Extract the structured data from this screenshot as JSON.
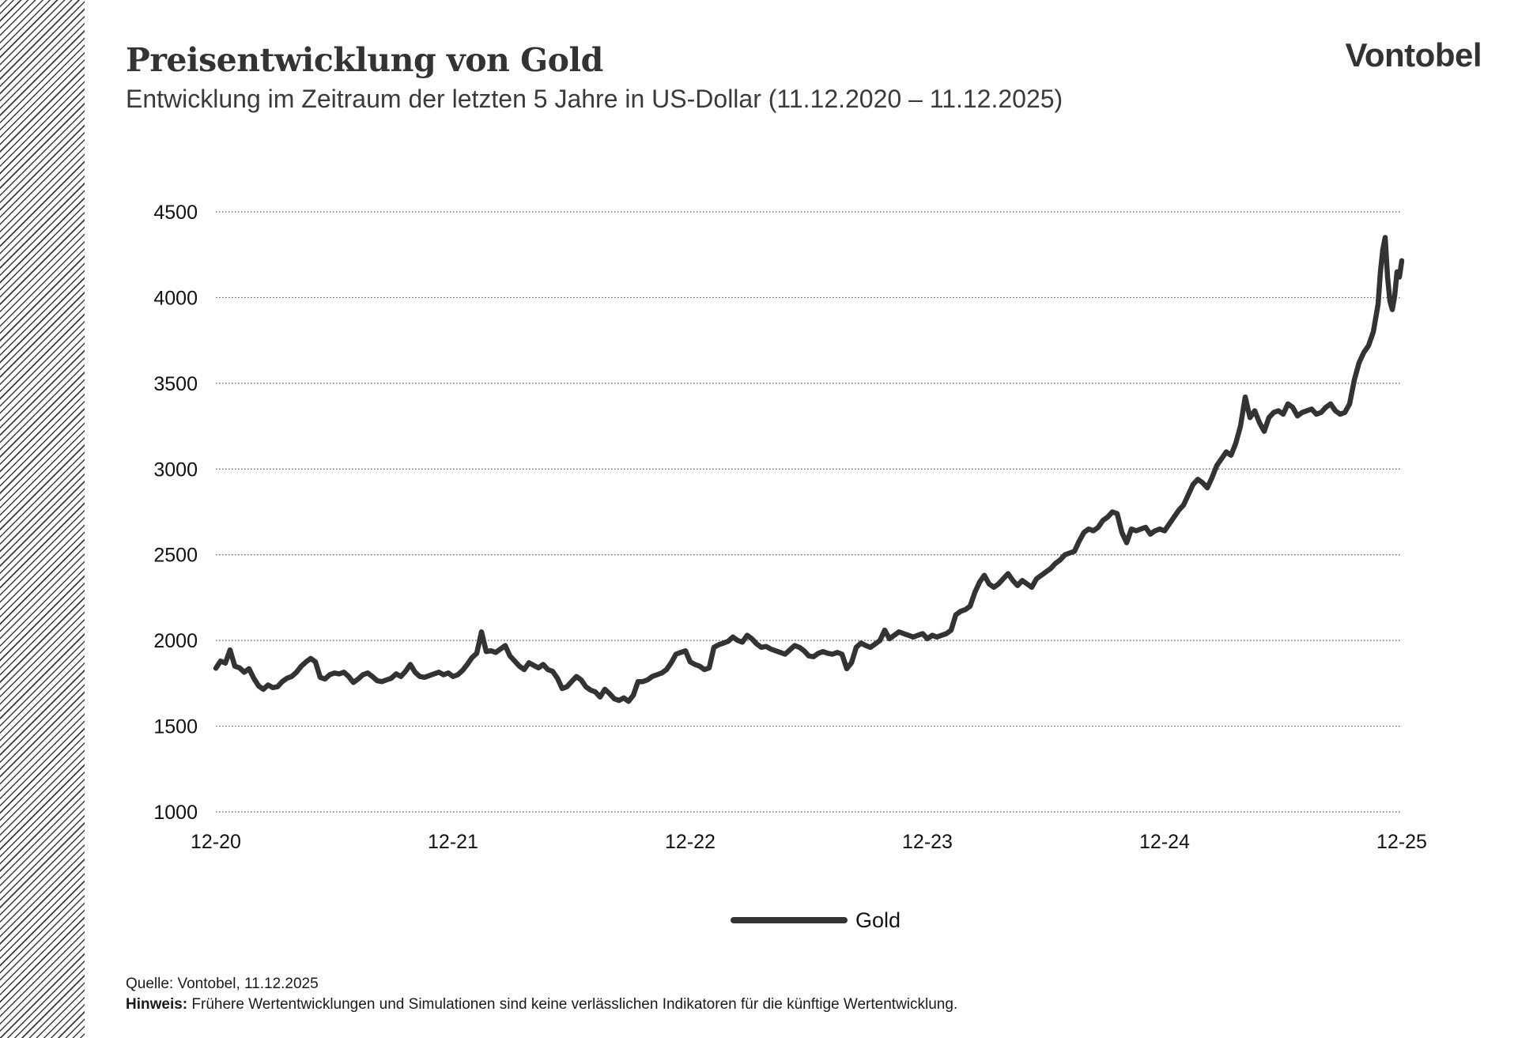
{
  "header": {
    "title": "Preisentwicklung von Gold",
    "subtitle": "Entwicklung im Zeitraum der letzten 5 Jahre in US-Dollar (11.12.2020 – 11.12.2025)",
    "logo": "Vontobel"
  },
  "footer": {
    "source": "Quelle: Vontobel, 11.12.2025",
    "note_label": "Hinweis:",
    "note_text": "Frühere Wertentwicklungen und Simulationen sind keine verlässlichen Indikatoren für die künftige Wertentwicklung."
  },
  "colors": {
    "line": "#333333",
    "grid": "#555555"
  },
  "chart_data": {
    "type": "line",
    "ylim": [
      1000,
      4500
    ],
    "yticks": [
      1000,
      1500,
      2000,
      2500,
      3000,
      3500,
      4000,
      4500
    ],
    "xlim": [
      2020.0,
      2025.0
    ],
    "xticks": [
      {
        "x": 2020.0,
        "label": "12-20"
      },
      {
        "x": 2021.0,
        "label": "12-21"
      },
      {
        "x": 2022.0,
        "label": "12-22"
      },
      {
        "x": 2023.0,
        "label": "12-23"
      },
      {
        "x": 2024.0,
        "label": "12-24"
      },
      {
        "x": 2025.0,
        "label": "12-25"
      }
    ],
    "grid": "horizontal dotted",
    "legend_position": "bottom",
    "series": [
      {
        "name": "Gold",
        "color": "#333333",
        "points": [
          [
            2020.0,
            1838
          ],
          [
            2020.02,
            1880
          ],
          [
            2020.04,
            1868
          ],
          [
            2020.06,
            1945
          ],
          [
            2020.08,
            1850
          ],
          [
            2020.1,
            1840
          ],
          [
            2020.12,
            1815
          ],
          [
            2020.14,
            1835
          ],
          [
            2020.16,
            1780
          ],
          [
            2020.18,
            1735
          ],
          [
            2020.2,
            1715
          ],
          [
            2020.22,
            1740
          ],
          [
            2020.24,
            1725
          ],
          [
            2020.26,
            1730
          ],
          [
            2020.28,
            1760
          ],
          [
            2020.3,
            1780
          ],
          [
            2020.32,
            1790
          ],
          [
            2020.34,
            1815
          ],
          [
            2020.36,
            1850
          ],
          [
            2020.38,
            1875
          ],
          [
            2020.4,
            1895
          ],
          [
            2020.42,
            1875
          ],
          [
            2020.44,
            1785
          ],
          [
            2020.46,
            1775
          ],
          [
            2020.48,
            1800
          ],
          [
            2020.5,
            1810
          ],
          [
            2020.52,
            1805
          ],
          [
            2020.54,
            1815
          ],
          [
            2020.56,
            1790
          ],
          [
            2020.58,
            1755
          ],
          [
            2020.6,
            1775
          ],
          [
            2020.62,
            1800
          ],
          [
            2020.64,
            1810
          ],
          [
            2020.66,
            1790
          ],
          [
            2020.68,
            1765
          ],
          [
            2020.7,
            1760
          ],
          [
            2020.72,
            1770
          ],
          [
            2020.74,
            1780
          ],
          [
            2020.76,
            1805
          ],
          [
            2020.78,
            1790
          ],
          [
            2020.8,
            1820
          ],
          [
            2020.82,
            1860
          ],
          [
            2020.84,
            1815
          ],
          [
            2020.86,
            1790
          ],
          [
            2020.88,
            1785
          ],
          [
            2020.9,
            1795
          ],
          [
            2020.92,
            1805
          ],
          [
            2020.94,
            1815
          ],
          [
            2020.96,
            1800
          ],
          [
            2020.98,
            1810
          ],
          [
            2021.0,
            1790
          ],
          [
            2021.02,
            1800
          ],
          [
            2021.04,
            1825
          ],
          [
            2021.06,
            1860
          ],
          [
            2021.08,
            1900
          ],
          [
            2021.1,
            1925
          ],
          [
            2021.12,
            2050
          ],
          [
            2021.14,
            1935
          ],
          [
            2021.16,
            1940
          ],
          [
            2021.18,
            1930
          ],
          [
            2021.2,
            1950
          ],
          [
            2021.22,
            1970
          ],
          [
            2021.24,
            1910
          ],
          [
            2021.26,
            1880
          ],
          [
            2021.28,
            1850
          ],
          [
            2021.3,
            1830
          ],
          [
            2021.32,
            1870
          ],
          [
            2021.34,
            1855
          ],
          [
            2021.36,
            1840
          ],
          [
            2021.38,
            1860
          ],
          [
            2021.4,
            1830
          ],
          [
            2021.42,
            1820
          ],
          [
            2021.44,
            1780
          ],
          [
            2021.46,
            1720
          ],
          [
            2021.48,
            1730
          ],
          [
            2021.5,
            1760
          ],
          [
            2021.52,
            1790
          ],
          [
            2021.54,
            1770
          ],
          [
            2021.56,
            1730
          ],
          [
            2021.58,
            1710
          ],
          [
            2021.6,
            1700
          ],
          [
            2021.62,
            1670
          ],
          [
            2021.64,
            1715
          ],
          [
            2021.66,
            1690
          ],
          [
            2021.68,
            1660
          ],
          [
            2021.7,
            1650
          ],
          [
            2021.72,
            1665
          ],
          [
            2021.74,
            1645
          ],
          [
            2021.76,
            1680
          ],
          [
            2021.78,
            1760
          ],
          [
            2021.8,
            1760
          ],
          [
            2021.82,
            1770
          ],
          [
            2021.84,
            1790
          ],
          [
            2021.86,
            1800
          ],
          [
            2021.88,
            1810
          ],
          [
            2021.9,
            1830
          ],
          [
            2021.92,
            1870
          ],
          [
            2021.94,
            1920
          ],
          [
            2021.96,
            1930
          ],
          [
            2021.98,
            1940
          ],
          [
            2022.0,
            1875
          ],
          [
            2022.02,
            1860
          ],
          [
            2022.04,
            1850
          ],
          [
            2022.06,
            1830
          ],
          [
            2022.08,
            1840
          ],
          [
            2022.1,
            1960
          ],
          [
            2022.12,
            1975
          ],
          [
            2022.14,
            1985
          ],
          [
            2022.16,
            1995
          ],
          [
            2022.18,
            2020
          ],
          [
            2022.2,
            2000
          ],
          [
            2022.22,
            1990
          ],
          [
            2022.24,
            2030
          ],
          [
            2022.26,
            2010
          ],
          [
            2022.28,
            1980
          ],
          [
            2022.3,
            1960
          ],
          [
            2022.32,
            1965
          ],
          [
            2022.34,
            1950
          ],
          [
            2022.36,
            1940
          ],
          [
            2022.38,
            1930
          ],
          [
            2022.4,
            1920
          ],
          [
            2022.42,
            1945
          ],
          [
            2022.44,
            1970
          ],
          [
            2022.46,
            1960
          ],
          [
            2022.48,
            1940
          ],
          [
            2022.5,
            1910
          ],
          [
            2022.52,
            1905
          ],
          [
            2022.54,
            1925
          ],
          [
            2022.56,
            1935
          ],
          [
            2022.58,
            1925
          ],
          [
            2022.6,
            1920
          ],
          [
            2022.62,
            1930
          ],
          [
            2022.64,
            1920
          ],
          [
            2022.66,
            1835
          ],
          [
            2022.68,
            1870
          ],
          [
            2022.7,
            1960
          ],
          [
            2022.72,
            1985
          ],
          [
            2022.74,
            1970
          ],
          [
            2022.76,
            1960
          ],
          [
            2022.78,
            1980
          ],
          [
            2022.8,
            2000
          ],
          [
            2022.82,
            2060
          ],
          [
            2022.84,
            2010
          ],
          [
            2022.86,
            2030
          ],
          [
            2022.88,
            2050
          ],
          [
            2022.9,
            2040
          ],
          [
            2022.92,
            2030
          ],
          [
            2022.94,
            2020
          ],
          [
            2022.96,
            2030
          ],
          [
            2022.98,
            2040
          ],
          [
            2023.0,
            2010
          ],
          [
            2023.02,
            2030
          ],
          [
            2023.04,
            2020
          ],
          [
            2023.06,
            2030
          ],
          [
            2023.08,
            2040
          ],
          [
            2023.1,
            2060
          ],
          [
            2023.12,
            2150
          ],
          [
            2023.14,
            2170
          ],
          [
            2023.16,
            2180
          ],
          [
            2023.18,
            2200
          ],
          [
            2023.2,
            2280
          ],
          [
            2023.22,
            2340
          ],
          [
            2023.24,
            2380
          ],
          [
            2023.26,
            2330
          ],
          [
            2023.28,
            2310
          ],
          [
            2023.3,
            2330
          ],
          [
            2023.32,
            2360
          ],
          [
            2023.34,
            2390
          ],
          [
            2023.36,
            2350
          ],
          [
            2023.38,
            2320
          ],
          [
            2023.4,
            2350
          ],
          [
            2023.42,
            2330
          ],
          [
            2023.44,
            2310
          ],
          [
            2023.46,
            2360
          ],
          [
            2023.48,
            2380
          ],
          [
            2023.5,
            2400
          ],
          [
            2023.52,
            2420
          ],
          [
            2023.54,
            2450
          ],
          [
            2023.56,
            2470
          ],
          [
            2023.58,
            2500
          ],
          [
            2023.6,
            2510
          ],
          [
            2023.62,
            2520
          ],
          [
            2023.64,
            2580
          ],
          [
            2023.66,
            2630
          ],
          [
            2023.68,
            2650
          ],
          [
            2023.7,
            2640
          ],
          [
            2023.72,
            2660
          ],
          [
            2023.74,
            2700
          ],
          [
            2023.76,
            2720
          ],
          [
            2023.78,
            2750
          ],
          [
            2023.8,
            2740
          ],
          [
            2023.82,
            2630
          ],
          [
            2023.84,
            2570
          ],
          [
            2023.86,
            2650
          ],
          [
            2023.88,
            2640
          ],
          [
            2023.9,
            2650
          ],
          [
            2023.92,
            2660
          ],
          [
            2023.94,
            2620
          ],
          [
            2023.96,
            2640
          ],
          [
            2023.98,
            2650
          ],
          [
            2024.0,
            2640
          ],
          [
            2024.02,
            2680
          ],
          [
            2024.04,
            2720
          ],
          [
            2024.06,
            2760
          ],
          [
            2024.08,
            2790
          ],
          [
            2024.1,
            2850
          ],
          [
            2024.12,
            2910
          ],
          [
            2024.14,
            2940
          ],
          [
            2024.16,
            2920
          ],
          [
            2024.18,
            2890
          ],
          [
            2024.2,
            2950
          ],
          [
            2024.22,
            3020
          ],
          [
            2024.24,
            3060
          ],
          [
            2024.26,
            3100
          ],
          [
            2024.28,
            3080
          ],
          [
            2024.3,
            3150
          ],
          [
            2024.32,
            3250
          ],
          [
            2024.34,
            3420
          ],
          [
            2024.36,
            3300
          ],
          [
            2024.38,
            3340
          ],
          [
            2024.4,
            3270
          ],
          [
            2024.42,
            3220
          ],
          [
            2024.44,
            3300
          ],
          [
            2024.46,
            3330
          ],
          [
            2024.48,
            3340
          ],
          [
            2024.5,
            3320
          ],
          [
            2024.52,
            3380
          ],
          [
            2024.54,
            3360
          ],
          [
            2024.56,
            3310
          ],
          [
            2024.58,
            3330
          ],
          [
            2024.6,
            3340
          ],
          [
            2024.62,
            3350
          ],
          [
            2024.64,
            3320
          ],
          [
            2024.66,
            3330
          ],
          [
            2024.68,
            3360
          ],
          [
            2024.7,
            3380
          ],
          [
            2024.72,
            3340
          ],
          [
            2024.74,
            3320
          ],
          [
            2024.76,
            3330
          ],
          [
            2024.78,
            3380
          ],
          [
            2024.8,
            3520
          ],
          [
            2024.82,
            3620
          ],
          [
            2024.84,
            3680
          ],
          [
            2024.86,
            3720
          ],
          [
            2024.88,
            3800
          ],
          [
            2024.9,
            3960
          ],
          [
            2024.91,
            4150
          ],
          [
            2024.92,
            4280
          ],
          [
            2024.93,
            4350
          ],
          [
            2024.94,
            4120
          ],
          [
            2024.95,
            3980
          ],
          [
            2024.96,
            3930
          ],
          [
            2024.97,
            4010
          ],
          [
            2024.98,
            4150
          ],
          [
            2024.99,
            4120
          ],
          [
            2025.0,
            4215
          ]
        ]
      }
    ]
  }
}
